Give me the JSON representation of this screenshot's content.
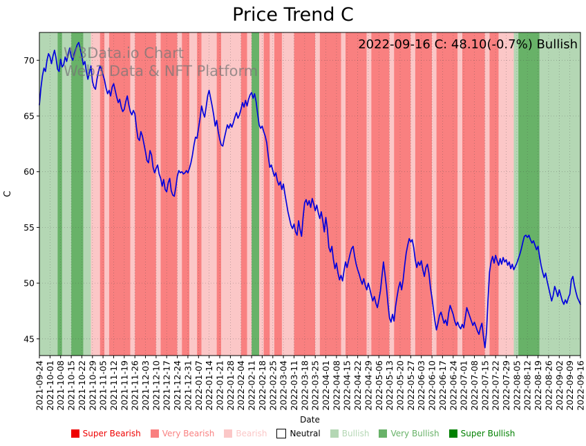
{
  "title": "Price Trend C",
  "watermark": {
    "line1": "W3Data.io Chart",
    "line2": "Web3 Data & NFT Platform"
  },
  "annotation": "2022-09-16 C: 48.10(-0.7%) Bullish",
  "chart_data": {
    "type": "line",
    "title": "Price Trend C",
    "xlabel": "Date",
    "ylabel": "C",
    "ylim": [
      43.5,
      72.5
    ],
    "yticks": [
      45,
      50,
      55,
      60,
      65,
      70
    ],
    "grid": true,
    "legend_position": "bottom",
    "x0_date": "2021-09-24",
    "x_step_days": 1,
    "x_tick_interval_days": 7,
    "x_tick_labels": [
      "2021-09-24",
      "2021-10-01",
      "2021-10-08",
      "2021-10-15",
      "2021-10-22",
      "2021-10-29",
      "2021-11-05",
      "2021-11-12",
      "2021-11-19",
      "2021-11-26",
      "2021-12-03",
      "2021-12-10",
      "2021-12-17",
      "2021-12-24",
      "2021-12-31",
      "2022-01-07",
      "2022-01-14",
      "2022-01-21",
      "2022-01-28",
      "2022-02-04",
      "2022-02-11",
      "2022-02-18",
      "2022-02-25",
      "2022-03-04",
      "2022-03-11",
      "2022-03-18",
      "2022-03-25",
      "2022-04-01",
      "2022-04-08",
      "2022-04-15",
      "2022-04-22",
      "2022-04-29",
      "2022-05-06",
      "2022-05-13",
      "2022-05-20",
      "2022-05-27",
      "2022-06-03",
      "2022-06-10",
      "2022-06-17",
      "2022-06-24",
      "2022-07-01",
      "2022-07-08",
      "2022-07-15",
      "2022-07-22",
      "2022-07-29",
      "2022-08-05",
      "2022-08-12",
      "2022-08-19",
      "2022-08-26",
      "2022-09-02",
      "2022-09-09",
      "2022-09-16"
    ],
    "series": [
      {
        "name": "C",
        "color": "#0000dd",
        "y": [
          66.0,
          67.5,
          68.6,
          69.3,
          69.0,
          70.0,
          70.6,
          70.3,
          69.7,
          70.4,
          70.9,
          70.2,
          69.2,
          69.0,
          70.1,
          69.4,
          69.6,
          70.3,
          69.9,
          70.6,
          71.1,
          70.3,
          70.0,
          70.6,
          71.0,
          71.4,
          71.6,
          71.0,
          70.4,
          69.6,
          69.9,
          69.0,
          68.3,
          68.9,
          69.5,
          68.1,
          67.6,
          67.4,
          68.3,
          69.0,
          69.5,
          69.2,
          68.7,
          68.2,
          67.5,
          67.0,
          67.3,
          66.8,
          67.6,
          67.9,
          67.3,
          66.7,
          66.2,
          66.5,
          65.8,
          65.4,
          65.6,
          66.3,
          66.8,
          66.0,
          65.4,
          65.1,
          65.5,
          65.2,
          64.0,
          63.0,
          62.8,
          63.6,
          63.2,
          62.5,
          61.8,
          61.0,
          60.8,
          61.9,
          61.5,
          60.4,
          59.9,
          60.3,
          60.6,
          59.8,
          59.4,
          58.7,
          59.3,
          58.4,
          58.2,
          59.0,
          59.4,
          58.3,
          57.9,
          57.8,
          58.6,
          59.6,
          60.1,
          59.9,
          60.0,
          59.8,
          59.9,
          60.1,
          59.9,
          60.3,
          60.8,
          61.5,
          62.4,
          63.1,
          63.0,
          63.9,
          64.8,
          65.9,
          65.3,
          64.9,
          65.8,
          66.8,
          67.3,
          66.6,
          65.9,
          65.1,
          64.1,
          64.6,
          63.6,
          62.9,
          62.4,
          62.3,
          63.0,
          63.6,
          64.2,
          63.9,
          64.3,
          64.0,
          64.4,
          64.9,
          65.3,
          64.8,
          65.1,
          65.6,
          66.2,
          65.8,
          66.4,
          65.9,
          66.5,
          66.9,
          67.1,
          66.6,
          67.0,
          66.3,
          65.2,
          64.2,
          63.9,
          64.1,
          63.6,
          63.2,
          62.6,
          61.4,
          60.4,
          60.6,
          60.1,
          59.6,
          59.9,
          59.2,
          58.8,
          59.1,
          58.4,
          58.9,
          58.0,
          57.2,
          56.4,
          55.8,
          55.2,
          54.9,
          55.3,
          54.6,
          54.3,
          55.6,
          54.8,
          54.2,
          55.9,
          57.2,
          57.5,
          57.0,
          57.4,
          56.8,
          57.6,
          57.1,
          56.5,
          57.0,
          56.3,
          55.8,
          56.4,
          55.6,
          54.6,
          55.9,
          54.9,
          53.2,
          52.8,
          53.3,
          52.1,
          51.3,
          51.8,
          50.9,
          50.3,
          50.7,
          50.2,
          51.1,
          51.9,
          51.4,
          52.0,
          52.6,
          53.1,
          53.3,
          52.4,
          51.7,
          51.2,
          50.8,
          50.3,
          49.9,
          50.4,
          49.8,
          49.4,
          50.0,
          49.5,
          48.9,
          48.4,
          48.8,
          48.2,
          47.8,
          48.5,
          49.3,
          50.6,
          51.9,
          50.8,
          49.6,
          48.1,
          46.9,
          46.5,
          47.2,
          46.6,
          47.9,
          48.8,
          49.6,
          50.1,
          49.4,
          50.3,
          51.6,
          52.7,
          53.4,
          54.0,
          53.7,
          53.9,
          53.2,
          52.1,
          51.4,
          51.9,
          51.6,
          52.0,
          51.2,
          50.6,
          51.4,
          51.7,
          50.9,
          49.6,
          48.7,
          47.6,
          46.6,
          45.8,
          46.4,
          47.1,
          47.4,
          46.9,
          46.4,
          46.7,
          46.2,
          47.3,
          48.0,
          47.6,
          47.2,
          46.6,
          46.2,
          46.5,
          46.1,
          45.9,
          46.3,
          46.0,
          46.9,
          47.8,
          47.4,
          47.0,
          46.6,
          46.2,
          46.5,
          46.1,
          45.7,
          45.4,
          46.0,
          46.4,
          45.2,
          44.2,
          45.6,
          48.5,
          51.0,
          51.9,
          52.4,
          51.8,
          52.5,
          52.0,
          51.6,
          52.2,
          51.7,
          52.3,
          51.9,
          52.1,
          51.6,
          51.9,
          51.3,
          51.7,
          51.2,
          51.5,
          51.8,
          52.2,
          52.6,
          53.1,
          53.7,
          54.2,
          54.3,
          54.1,
          54.3,
          53.9,
          53.6,
          53.8,
          53.4,
          53.0,
          53.3,
          52.4,
          51.6,
          51.0,
          50.5,
          50.9,
          50.2,
          49.6,
          49.0,
          48.4,
          48.9,
          49.7,
          49.3,
          48.8,
          49.4,
          48.9,
          48.4,
          48.1,
          48.5,
          48.2,
          48.7,
          49.0,
          50.3,
          50.6,
          49.8,
          49.2,
          48.7,
          48.4,
          48.1
        ]
      }
    ],
    "last_point": {
      "date": "2022-09-16",
      "value": 48.1,
      "change_pct": -0.7,
      "sentiment": "Bullish"
    },
    "sentiment_colors": {
      "super_bearish": "#ee0000",
      "very_bearish": "#f98080",
      "bearish": "#fbc7c7",
      "neutral": "#ffffff",
      "bullish": "#b4d7b4",
      "very_bullish": "#68b268",
      "super_bullish": "#008000"
    },
    "sentiment_bands": [
      [
        0,
        12,
        "bullish"
      ],
      [
        12,
        15,
        "very_bullish"
      ],
      [
        15,
        21,
        "bullish"
      ],
      [
        21,
        29,
        "very_bullish"
      ],
      [
        29,
        34,
        "bullish"
      ],
      [
        34,
        40,
        "bearish"
      ],
      [
        40,
        43,
        "very_bearish"
      ],
      [
        43,
        46,
        "bearish"
      ],
      [
        46,
        60,
        "very_bearish"
      ],
      [
        60,
        63,
        "bearish"
      ],
      [
        63,
        77,
        "very_bearish"
      ],
      [
        77,
        80,
        "bearish"
      ],
      [
        80,
        91,
        "very_bearish"
      ],
      [
        91,
        94,
        "bearish"
      ],
      [
        94,
        99,
        "very_bearish"
      ],
      [
        99,
        104,
        "bearish"
      ],
      [
        104,
        107,
        "very_bearish"
      ],
      [
        107,
        117,
        "bearish"
      ],
      [
        117,
        120,
        "very_bearish"
      ],
      [
        120,
        133,
        "bearish"
      ],
      [
        133,
        137,
        "very_bearish"
      ],
      [
        137,
        140,
        "bearish"
      ],
      [
        140,
        145,
        "very_bullish"
      ],
      [
        145,
        148,
        "bearish"
      ],
      [
        148,
        152,
        "very_bearish"
      ],
      [
        152,
        155,
        "bearish"
      ],
      [
        155,
        160,
        "very_bearish"
      ],
      [
        160,
        168,
        "bearish"
      ],
      [
        168,
        182,
        "very_bearish"
      ],
      [
        182,
        185,
        "bearish"
      ],
      [
        185,
        199,
        "very_bearish"
      ],
      [
        199,
        202,
        "bearish"
      ],
      [
        202,
        216,
        "very_bearish"
      ],
      [
        216,
        219,
        "bearish"
      ],
      [
        219,
        231,
        "very_bearish"
      ],
      [
        231,
        234,
        "bearish"
      ],
      [
        234,
        245,
        "very_bearish"
      ],
      [
        245,
        248,
        "bearish"
      ],
      [
        248,
        259,
        "very_bearish"
      ],
      [
        259,
        262,
        "bearish"
      ],
      [
        262,
        276,
        "very_bearish"
      ],
      [
        276,
        279,
        "bearish"
      ],
      [
        279,
        294,
        "very_bearish"
      ],
      [
        294,
        297,
        "bearish"
      ],
      [
        297,
        303,
        "very_bearish"
      ],
      [
        303,
        313,
        "bearish"
      ],
      [
        313,
        316,
        "bullish"
      ],
      [
        316,
        330,
        "very_bullish"
      ],
      [
        330,
        358,
        "bullish"
      ]
    ],
    "legend": [
      {
        "key": "super_bearish",
        "label": "Super Bearish"
      },
      {
        "key": "very_bearish",
        "label": "Very Bearish"
      },
      {
        "key": "bearish",
        "label": "Bearish"
      },
      {
        "key": "neutral",
        "label": "Neutral"
      },
      {
        "key": "bullish",
        "label": "Bullish"
      },
      {
        "key": "very_bullish",
        "label": "Very Bullish"
      },
      {
        "key": "super_bullish",
        "label": "Super Bullish"
      }
    ]
  }
}
